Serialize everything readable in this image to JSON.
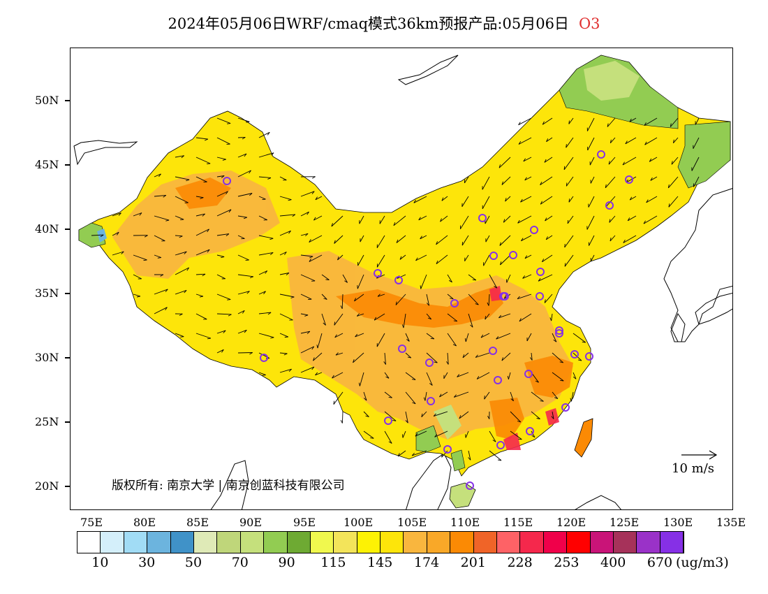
{
  "header": {
    "title": "2024年05月06日WRF/cmaq模式36km预报产品:05月06日",
    "species": "O3"
  },
  "axes": {
    "lat_labels": [
      "50N",
      "45N",
      "40N",
      "35N",
      "30N",
      "25N",
      "20N"
    ],
    "lon_labels": [
      "75E",
      "80E",
      "85E",
      "90E",
      "95E",
      "100E",
      "105E",
      "110E",
      "115E",
      "120E",
      "125E",
      "130E",
      "135E"
    ]
  },
  "legend": {
    "colors": [
      "#ffffff",
      "#d4effa",
      "#a1dcf5",
      "#6cb4de",
      "#4092c8",
      "#dfeab7",
      "#bfd67a",
      "#c5e07c",
      "#92cc52",
      "#6eaa33",
      "#f0f84e",
      "#f3e45a",
      "#fdf204",
      "#fde50a",
      "#f9b63e",
      "#f9a828",
      "#fb8a04",
      "#f06428",
      "#fe6266",
      "#f5284c",
      "#f0004a",
      "#ff0000",
      "#c91478",
      "#a6325a",
      "#9a32c8",
      "#8630e6"
    ],
    "labels": [
      "10",
      "30",
      "50",
      "70",
      "90",
      "115",
      "145",
      "174",
      "201",
      "228",
      "253",
      "400",
      "670"
    ],
    "unit": "(ug/m3)"
  },
  "map": {
    "copyright": "版权所有: 南京大学 | 南京创蓝科技有限公司",
    "wind_scale": "10 m/s",
    "colors": {
      "land_base": "#fde50a",
      "orange": "#f9b63e",
      "deep_orange": "#fb8a04",
      "red": "#f5284c",
      "green": "#92cc52",
      "light_green": "#c5e07c",
      "site_marker": "#8630e6"
    }
  }
}
